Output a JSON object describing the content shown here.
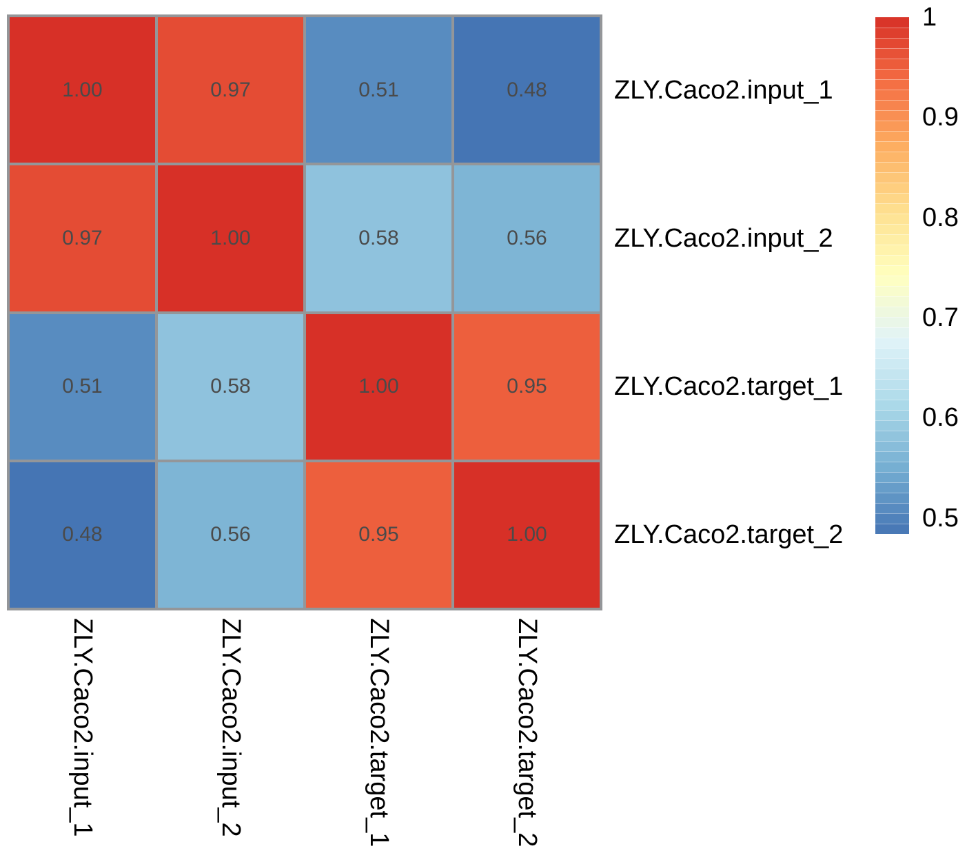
{
  "figure": {
    "background": "#ffffff"
  },
  "chart_data": {
    "type": "heatmap",
    "title": "",
    "rows": [
      "ZLY.Caco2.input_1",
      "ZLY.Caco2.input_2",
      "ZLY.Caco2.target_1",
      "ZLY.Caco2.target_2"
    ],
    "columns": [
      "ZLY.Caco2.input_1",
      "ZLY.Caco2.input_2",
      "ZLY.Caco2.target_1",
      "ZLY.Caco2.target_2"
    ],
    "matrix": [
      [
        1.0,
        0.97,
        0.51,
        0.48
      ],
      [
        0.97,
        1.0,
        0.58,
        0.56
      ],
      [
        0.51,
        0.58,
        1.0,
        0.95
      ],
      [
        0.48,
        0.56,
        0.95,
        1.0
      ]
    ],
    "cell_labels": [
      [
        "1.00",
        "0.97",
        "0.51",
        "0.48"
      ],
      [
        "0.97",
        "1.00",
        "0.58",
        "0.56"
      ],
      [
        "0.51",
        "0.58",
        "1.00",
        "0.95"
      ],
      [
        "0.48",
        "0.56",
        "0.95",
        "1.00"
      ]
    ],
    "value_format_decimals": 2,
    "color_scale": {
      "name": "RdYlBu-9 reversed (blue low, red high)",
      "stops_low_to_high": [
        "#4575b4",
        "#74add1",
        "#abd9e9",
        "#e0f3f8",
        "#ffffbf",
        "#fee090",
        "#fdae61",
        "#f46d43",
        "#d73027"
      ],
      "domain": [
        0.484,
        1.0
      ],
      "segments": 50,
      "legend_position": "right",
      "legend_ticks": [
        {
          "label": "1",
          "value": 1.0
        },
        {
          "label": "0.9",
          "value": 0.9
        },
        {
          "label": "0.8",
          "value": 0.8
        },
        {
          "label": "0.7",
          "value": 0.7
        },
        {
          "label": "0.6",
          "value": 0.6
        },
        {
          "label": "0.5",
          "value": 0.5
        }
      ]
    },
    "layout_hints": {
      "grid_on": false,
      "row_labels_side": "right",
      "column_labels_side": "bottom-rotated-90",
      "cell_border_color": "#949699",
      "cell_text_color": "#4a4a4a",
      "label_text_color": "#000000"
    }
  }
}
